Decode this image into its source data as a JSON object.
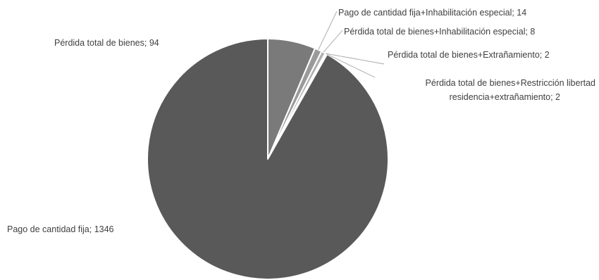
{
  "chart_data": {
    "type": "pie",
    "title": "",
    "start_angle_deg": 0,
    "direction": "clockwise",
    "slices": [
      {
        "label": "Pérdida total de bienes",
        "value": 94,
        "label_text": "Pérdida total de bienes; 94",
        "color": "#7a7a7a"
      },
      {
        "label": "Pago de cantidad fija+Inhabilitación especial",
        "value": 14,
        "label_text": "Pago de cantidad fija+Inhabilitación especial; 14",
        "color": "#9a9a9a"
      },
      {
        "label": "Pérdida total de bienes+Inhabilitación especial",
        "value": 8,
        "label_text": "Pérdida total de bienes+Inhabilitación especial; 8",
        "color": "#b0b0b0"
      },
      {
        "label": "Pérdida total de bienes+Extrañamiento",
        "value": 2,
        "label_text": "Pérdida total de bienes+Extrañamiento; 2",
        "color": "#c6c6c6"
      },
      {
        "label": "Pérdida total de bienes+Restricción libertad residencia+extrañamiento",
        "value": 2,
        "label_lines": [
          "Pérdida total de bienes+Restricción libertad",
          "residencia+extrañamiento; 2"
        ],
        "color": "#8a8a8a"
      },
      {
        "label": "Pago de cantidad fija",
        "value": 1346,
        "label_text": "Pago de cantidad fija; 1346",
        "color": "#595959"
      }
    ]
  }
}
